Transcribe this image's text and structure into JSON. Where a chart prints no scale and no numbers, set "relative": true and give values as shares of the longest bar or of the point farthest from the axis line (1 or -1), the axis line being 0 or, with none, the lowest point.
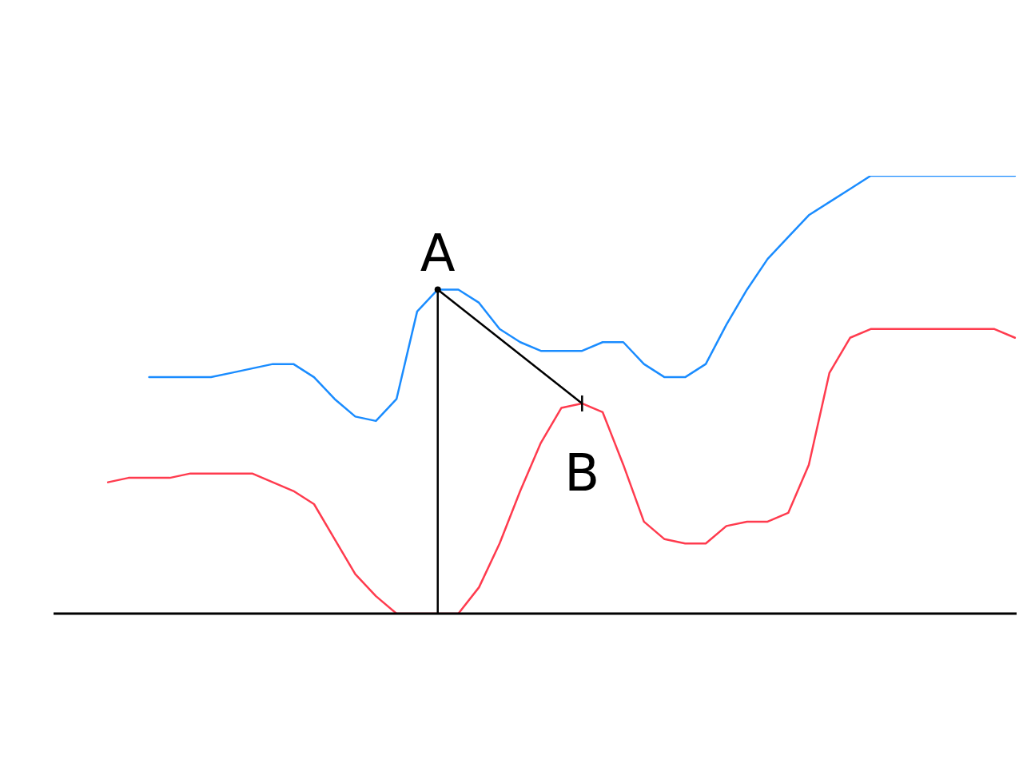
{
  "chart_data": {
    "type": "line",
    "relative": true,
    "legend": false,
    "marker": "none",
    "line_style": "solid",
    "categories": [
      null,
      null,
      null,
      null,
      null,
      null,
      null,
      null,
      null,
      null,
      null,
      null,
      null,
      null,
      null,
      null,
      null,
      null,
      null,
      null,
      null,
      null,
      null,
      null,
      null,
      null,
      null,
      null,
      null,
      null,
      null,
      null,
      null,
      null,
      null,
      null,
      null,
      null,
      null,
      null,
      null,
      null,
      null,
      null,
      null
    ],
    "series": [
      {
        "color": "#1a8cff",
        "values": [
          null,
          null,
          0.54,
          0.54,
          0.54,
          0.54,
          0.55,
          0.56,
          0.57,
          0.57,
          0.54,
          0.49,
          0.45,
          0.44,
          0.49,
          0.69,
          0.74,
          0.74,
          0.71,
          0.65,
          0.62,
          0.6,
          0.6,
          0.6,
          0.62,
          0.62,
          0.57,
          0.54,
          0.54,
          0.57,
          0.66,
          0.74,
          0.81,
          0.86,
          0.91,
          0.94,
          0.97,
          1,
          1,
          1,
          1,
          1,
          1,
          1,
          1
        ]
      },
      {
        "color": "#ff3b4e",
        "values": [
          0.3,
          0.31,
          0.31,
          0.31,
          0.32,
          0.32,
          0.32,
          0.32,
          0.3,
          0.28,
          0.25,
          0.17,
          0.09,
          0.04,
          0,
          0,
          0,
          0,
          0.06,
          0.16,
          0.28,
          0.39,
          0.47,
          0.48,
          0.46,
          0.34,
          0.21,
          0.17,
          0.16,
          0.16,
          0.2,
          0.21,
          0.21,
          0.23,
          0.34,
          0.55,
          0.63,
          0.65,
          0.65,
          0.65,
          0.65,
          0.65,
          0.65,
          0.65,
          0.63
        ]
      }
    ],
    "annotations": [
      {
        "text": "A",
        "y": 0.74
      },
      {
        "text": "B",
        "y": 0.48
      }
    ]
  }
}
